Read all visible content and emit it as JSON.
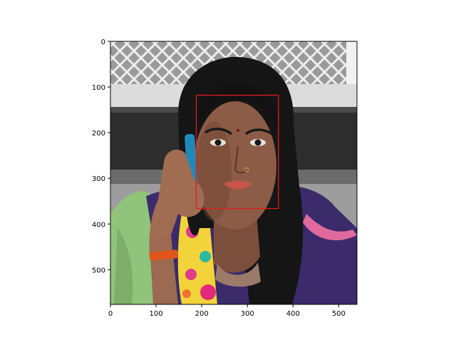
{
  "figure": {
    "image_size": {
      "width": 540,
      "height": 576
    },
    "x_ticks": [
      "0",
      "100",
      "200",
      "300",
      "400",
      "500"
    ],
    "y_ticks": [
      "0",
      "100",
      "200",
      "300",
      "400",
      "500"
    ],
    "face_box": {
      "x0": 188,
      "y0": 118,
      "x1": 368,
      "y1": 366,
      "color": "#e31a1c"
    },
    "colors": {
      "fence": "#8a8a8a",
      "wall": "#d9d9d9",
      "dark_bench": "#2b2b2b",
      "floor": "#9b9b9b",
      "hair": "#141414",
      "skin": "#8a5a44",
      "shirt_purple": "#3a2a6a",
      "dupatta_green": "#8fc47a",
      "lips": "#c8554a",
      "phone": "#1f8ab8"
    }
  }
}
